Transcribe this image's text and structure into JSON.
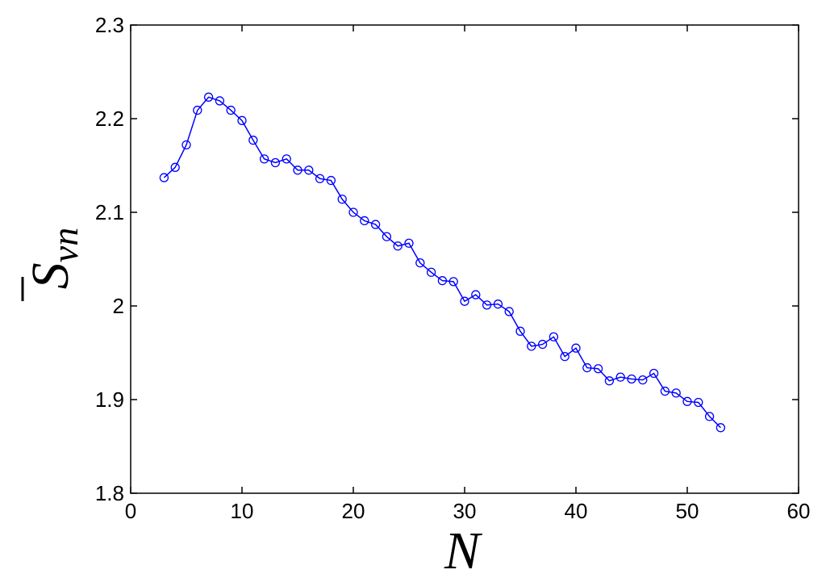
{
  "chart_data": {
    "type": "line",
    "xlabel": "N",
    "ylabel_base": "S",
    "ylabel_sub": "vn",
    "xlim": [
      0,
      60
    ],
    "ylim": [
      1.8,
      2.3
    ],
    "xticks": [
      0,
      10,
      20,
      30,
      40,
      50,
      60
    ],
    "xtick_labels": [
      "0",
      "10",
      "20",
      "30",
      "40",
      "50",
      "60"
    ],
    "yticks": [
      1.8,
      1.9,
      2.0,
      2.1,
      2.2,
      2.3
    ],
    "ytick_labels": [
      "1.8",
      "1.9",
      "2",
      "2.1",
      "2.2",
      "2.3"
    ],
    "grid": false,
    "series": [
      {
        "color": "#0000ff",
        "marker": "circle",
        "x": [
          3,
          4,
          5,
          6,
          7,
          8,
          9,
          10,
          11,
          12,
          13,
          14,
          15,
          16,
          17,
          18,
          19,
          20,
          21,
          22,
          23,
          24,
          25,
          26,
          27,
          28,
          29,
          30,
          31,
          32,
          33,
          34,
          35,
          36,
          37,
          38,
          39,
          40,
          41,
          42,
          43,
          44,
          45,
          46,
          47,
          48,
          49,
          50,
          51,
          52,
          53
        ],
        "y": [
          2.137,
          2.148,
          2.172,
          2.209,
          2.223,
          2.219,
          2.209,
          2.198,
          2.177,
          2.157,
          2.153,
          2.157,
          2.145,
          2.145,
          2.136,
          2.134,
          2.114,
          2.1,
          2.091,
          2.087,
          2.074,
          2.064,
          2.067,
          2.046,
          2.036,
          2.027,
          2.026,
          2.005,
          2.012,
          2.001,
          2.002,
          1.994,
          1.973,
          1.957,
          1.959,
          1.967,
          1.946,
          1.955,
          1.934,
          1.933,
          1.92,
          1.924,
          1.922,
          1.921,
          1.928,
          1.909,
          1.907,
          1.898,
          1.897,
          1.882,
          1.87
        ]
      }
    ]
  }
}
